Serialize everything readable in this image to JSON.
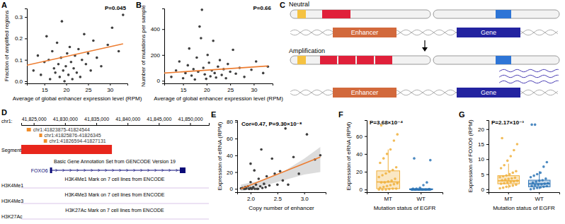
{
  "chart_data": [
    {
      "panel_label": "A",
      "type": "scatter",
      "x_label": "Average of global enhancer expression level (RPM)",
      "y_label": "Fraction of amplified regions",
      "annotation": "P=0.045",
      "x": [
        12.5,
        13.5,
        14.2,
        15.0,
        15.5,
        16.0,
        16.3,
        16.8,
        17.2,
        17.5,
        17.9,
        18.2,
        18.5,
        18.8,
        19.0,
        19.3,
        19.6,
        19.9,
        20.2,
        20.5,
        20.8,
        21.1,
        21.4,
        21.7,
        22.0,
        22.4,
        22.8,
        23.2,
        23.6,
        24.1,
        24.5,
        25.0,
        25.6,
        26.2,
        27.0,
        28.0,
        29.5,
        30.5,
        32.0,
        33.0
      ],
      "values": [
        0.05,
        0.12,
        0.03,
        0.09,
        0.21,
        0.1,
        0.01,
        0.14,
        0.06,
        0.04,
        0.18,
        0.08,
        0.02,
        0.11,
        0.28,
        0.05,
        0.0,
        0.07,
        0.13,
        0.03,
        0.16,
        0.09,
        0.01,
        0.06,
        0.12,
        0.04,
        0.15,
        0.02,
        0.1,
        0.22,
        0.08,
        0.13,
        0.05,
        0.19,
        0.11,
        0.07,
        0.17,
        0.25,
        0.14,
        0.31
      ],
      "color": "#3f3f3f",
      "fit": {
        "x": [
          11,
          33
        ],
        "values": [
          0.075,
          0.175
        ],
        "color": "#ed7d31"
      },
      "xlim": [
        11,
        34
      ],
      "xticks": [
        15,
        20,
        25,
        30
      ],
      "ylim": [
        -0.01,
        0.34
      ],
      "yticks": [
        {
          "value": 0,
          "label": "0.0"
        },
        {
          "value": 0.1,
          "label": "0.1"
        },
        {
          "value": 0.2,
          "label": "0.2"
        },
        {
          "value": 0.3,
          "label": "0.3"
        }
      ]
    },
    {
      "panel_label": "B",
      "type": "scatter",
      "x_label": "Average of global enhancer expression level (RPM)",
      "y_label": "Number of mutations per sample",
      "annotation": "P=0.66",
      "x": [
        12.5,
        13.5,
        14.2,
        15.0,
        15.5,
        16.0,
        16.3,
        16.8,
        17.2,
        17.5,
        17.9,
        18.2,
        18.5,
        18.8,
        19.0,
        19.3,
        19.6,
        19.9,
        20.2,
        20.5,
        20.8,
        21.1,
        21.4,
        21.7,
        22.0,
        22.4,
        22.8,
        23.2,
        23.6,
        24.1,
        24.5,
        25.0,
        25.6,
        26.2,
        27.0,
        28.0,
        29.5,
        30.5,
        32.0,
        33.0
      ],
      "values": [
        30,
        80,
        150,
        20,
        60,
        120,
        250,
        40,
        90,
        10,
        180,
        70,
        420,
        330,
        550,
        100,
        50,
        15,
        200,
        140,
        35,
        80,
        310,
        60,
        25,
        110,
        160,
        45,
        90,
        20,
        130,
        70,
        240,
        55,
        100,
        30,
        85,
        150,
        60,
        110
      ],
      "color": "#3f3f3f",
      "fit": {
        "x": [
          11,
          33
        ],
        "values": [
          60,
          115
        ],
        "color": "#ed7d31"
      },
      "xlim": [
        11,
        34
      ],
      "xticks": [
        15,
        20,
        25,
        30
      ],
      "ylim": [
        -20,
        560
      ],
      "yticks": [
        0,
        200,
        400
      ]
    },
    {
      "panel_label": "E",
      "type": "scatter",
      "x_label": "Copy number of enhancer",
      "y_label": "Expression of eRNA (RPM)",
      "annotation": "Cor=0.47, P=9.30×10⁻⁸",
      "x": [
        1.82,
        1.85,
        1.88,
        1.9,
        1.92,
        1.95,
        1.97,
        2.0,
        2.0,
        2.02,
        2.05,
        2.07,
        2.1,
        2.12,
        2.15,
        2.18,
        2.2,
        2.22,
        2.25,
        2.28,
        2.3,
        1.9,
        1.98,
        2.03,
        2.08,
        2.14,
        2.35,
        2.4,
        2.45,
        2.5,
        2.55,
        2.6,
        2.65,
        2.7,
        2.8,
        2.9,
        3.05,
        3.2,
        3.3,
        2.0
      ],
      "values": [
        0.5,
        1,
        0,
        2,
        0.5,
        3,
        0,
        1,
        8,
        0,
        2,
        22,
        5,
        0,
        12,
        3,
        47,
        1,
        6,
        2,
        15,
        0,
        0,
        0.5,
        0,
        0,
        4,
        36,
        18,
        5,
        21,
        10,
        72,
        5,
        38,
        18,
        65,
        35,
        40,
        30
      ],
      "color": "#3f3f3f",
      "fit": {
        "x": [
          1.82,
          3.3
        ],
        "values": [
          0,
          38
        ],
        "color": "#ed7d31"
      },
      "band": {
        "x": [
          1.82,
          2.2,
          2.6,
          3.0,
          3.3
        ],
        "lower": [
          -3,
          3,
          10,
          17,
          20
        ],
        "upper": [
          5,
          10,
          20,
          36,
          50
        ],
        "color": "#bfbfbf"
      },
      "xlim": [
        1.75,
        3.4
      ],
      "xticks": [
        {
          "value": 2,
          "label": "2.0"
        },
        2.5,
        {
          "value": 3,
          "label": "3.0"
        }
      ],
      "ylim": [
        -4,
        82
      ],
      "yticks": [
        0,
        20,
        40,
        60,
        80
      ]
    },
    {
      "panel_label": "F",
      "type": "box",
      "x_label": "Mutation status of EGFR",
      "y_label": "Expression of eRNA (RPM)",
      "annotation": "P=3.68×10⁻⁴",
      "categories": [
        "MT",
        "WT"
      ],
      "colors": [
        "#f0b03c",
        "#2e75b6"
      ],
      "boxes": [
        {
          "low": 0,
          "q1": 1,
          "median": 8.5,
          "q3": 21,
          "high": 45
        },
        {
          "low": 0,
          "q1": 0,
          "median": 0,
          "q3": 0.8,
          "high": 2
        }
      ],
      "points": [
        [
          0,
          0,
          0,
          0.5,
          1,
          1,
          2,
          3,
          4,
          5,
          6,
          7,
          8,
          8,
          9,
          10,
          12,
          14,
          16,
          18,
          20,
          22,
          25,
          30,
          35,
          40,
          45,
          55,
          62,
          72
        ],
        [
          0,
          0,
          0,
          0,
          0,
          0,
          0,
          0,
          0,
          0,
          0,
          0,
          0,
          0,
          0,
          0,
          0,
          0,
          0,
          0,
          0,
          0,
          0.5,
          1,
          1,
          2,
          5,
          8,
          33,
          35
        ]
      ],
      "ylim": [
        -3,
        78
      ],
      "yticks": [
        0,
        20,
        40,
        60
      ]
    },
    {
      "panel_label": "G",
      "type": "box",
      "x_label": "Mutation status of EGFR",
      "y_label": "Expression of FOXO6 (RPM)",
      "annotation": "P=2.17×10⁻³",
      "categories": [
        "MT",
        "WT"
      ],
      "colors": [
        "#f0b03c",
        "#2e75b6"
      ],
      "boxes": [
        {
          "low": 0.3,
          "q1": 1.8,
          "median": 2.8,
          "q3": 4.5,
          "high": 8.5
        },
        {
          "low": 0,
          "q1": 0.8,
          "median": 1.8,
          "q3": 3,
          "high": 6
        }
      ],
      "points": [
        [
          0.3,
          0.5,
          0.8,
          1,
          1.2,
          1.5,
          1.8,
          2,
          2.2,
          2.4,
          2.6,
          2.8,
          3,
          3.2,
          3.4,
          3.6,
          3.8,
          4,
          4.3,
          4.6,
          5,
          5.5,
          6,
          7,
          8,
          9.5,
          11,
          13,
          15,
          17
        ],
        [
          0,
          0.2,
          0.4,
          0.6,
          0.8,
          1,
          1.1,
          1.3,
          1.5,
          1.6,
          1.8,
          2,
          2.2,
          2.5,
          2.8,
          3,
          3.5,
          4,
          4.5,
          5,
          5.5,
          7.5,
          9,
          21.5,
          21.5
        ]
      ],
      "ylim": [
        -1,
        23
      ],
      "yticks": [
        0,
        5,
        10,
        15,
        20
      ]
    }
  ],
  "diagram": {
    "panel_label": "C",
    "rows": [
      {
        "label": "Neutral"
      },
      {
        "label": "Amplification"
      }
    ],
    "enhancer": "Enhancer",
    "gene": "Gene"
  },
  "browser": {
    "panel_label": "D",
    "chrom": "chr1:",
    "xlim": [
      41823000,
      41853000
    ],
    "xticks": [
      {
        "value": 41825000,
        "label": "41,825,000"
      },
      {
        "value": 41830000,
        "label": "41,830,000"
      },
      {
        "value": 41835000,
        "label": "41,835,000"
      },
      {
        "value": 41840000,
        "label": "41,840,000"
      },
      {
        "value": 41845000,
        "label": "41,845,000"
      },
      {
        "value": 41850000,
        "label": "41,850,000"
      }
    ],
    "enhancers": [
      {
        "start": 41823875,
        "end": 41824544,
        "label": "chr1:41823875-41824544"
      },
      {
        "start": 41825876,
        "end": 41826345,
        "label": "chr1:41825876-41826345"
      },
      {
        "start": 41826594,
        "end": 41827131,
        "label": "chr1:41826594-41827131"
      }
    ],
    "segment_track": "Segment",
    "segment": {
      "start": 41823000,
      "end": 41837500
    },
    "gene_track": "Basic Gene Annotation Set from GENCODE Version 19",
    "gene": {
      "name": "FOXO6",
      "start": 41827594,
      "end": 41849262
    },
    "marks": [
      {
        "name": "H3K4Me1",
        "label": "H3K4Me1 Mark on 7 cell lines from ENCODE"
      },
      {
        "name": "H3K4Me3",
        "label": "H3K4Me3 Mark on 7 cell lines from ENCODE"
      },
      {
        "name": "H3K27Ac",
        "label": "H3K27Ac Mark on 7 cell lines from ENCODE"
      }
    ]
  }
}
